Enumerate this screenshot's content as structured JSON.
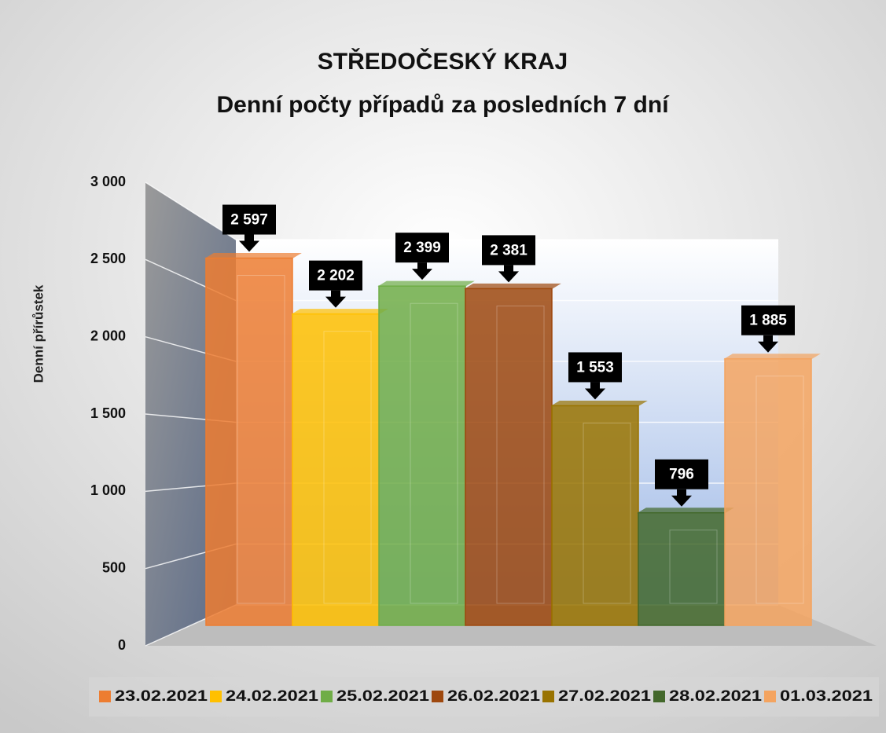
{
  "chart_data": {
    "type": "bar",
    "title": "STŘEDOČESKÝ KRAJ",
    "subtitle": "Denní počty případů za posledních 7 dní",
    "ylabel": "Denní přírůstek",
    "ylim": [
      0,
      3000
    ],
    "yticks": [
      0,
      500,
      {
        "value": 1000,
        "label": "1 000"
      },
      {
        "value": 1500,
        "label": "1 500"
      },
      {
        "value": 2000,
        "label": "2 000"
      },
      {
        "value": 2500,
        "label": "2 500"
      },
      {
        "value": 3000,
        "label": "3 000"
      }
    ],
    "grid": true,
    "legend": "bottom",
    "series": [
      {
        "name": "23.02.2021",
        "color": "#ed7d31",
        "values": [
          2597
        ],
        "value_labels": [
          "2 597"
        ]
      },
      {
        "name": "24.02.2021",
        "color": "#ffc000",
        "values": [
          2202
        ],
        "value_labels": [
          "2 202"
        ]
      },
      {
        "name": "25.02.2021",
        "color": "#70ad47",
        "values": [
          2399
        ],
        "value_labels": [
          "2 399"
        ]
      },
      {
        "name": "26.02.2021",
        "color": "#9e480e",
        "values": [
          2381
        ],
        "value_labels": [
          "2 381"
        ]
      },
      {
        "name": "27.02.2021",
        "color": "#997300",
        "values": [
          1553
        ],
        "value_labels": [
          "1 553"
        ]
      },
      {
        "name": "28.02.2021",
        "color": "#43682b",
        "values": [
          796
        ],
        "value_labels": [
          "796"
        ]
      },
      {
        "name": "01.03.2021",
        "color": "#f4a460",
        "values": [
          1885
        ],
        "value_labels": [
          "1 885"
        ]
      }
    ]
  }
}
